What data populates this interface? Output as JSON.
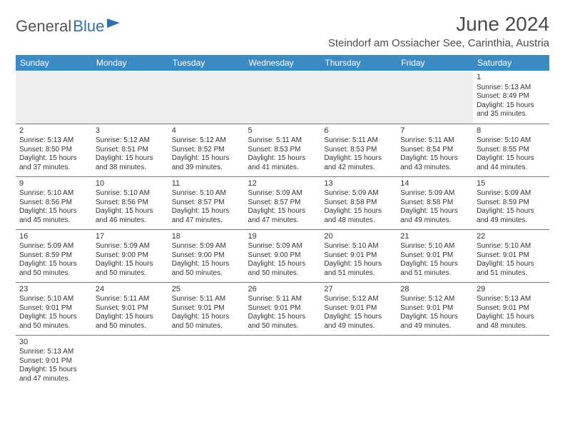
{
  "brand": {
    "left": "General",
    "right": "Blue"
  },
  "title": "June 2024",
  "location": "Steindorf am Ossiacher See, Carinthia, Austria",
  "colors": {
    "header_bg": "#3b8ac4",
    "header_text": "#ffffff",
    "rule": "#3b8ac4",
    "shade": "#efefef",
    "text": "#333333",
    "brand_blue": "#2f6fb0",
    "brand_gray": "#555555",
    "page_bg": "#ffffff"
  },
  "weekdays": [
    "Sunday",
    "Monday",
    "Tuesday",
    "Wednesday",
    "Thursday",
    "Friday",
    "Saturday"
  ],
  "weeks": [
    [
      null,
      null,
      null,
      null,
      null,
      null,
      {
        "day": "1",
        "sunrise": "Sunrise: 5:13 AM",
        "sunset": "Sunset: 8:49 PM",
        "daylight": "Daylight: 15 hours and 35 minutes."
      }
    ],
    [
      {
        "day": "2",
        "sunrise": "Sunrise: 5:13 AM",
        "sunset": "Sunset: 8:50 PM",
        "daylight": "Daylight: 15 hours and 37 minutes."
      },
      {
        "day": "3",
        "sunrise": "Sunrise: 5:12 AM",
        "sunset": "Sunset: 8:51 PM",
        "daylight": "Daylight: 15 hours and 38 minutes."
      },
      {
        "day": "4",
        "sunrise": "Sunrise: 5:12 AM",
        "sunset": "Sunset: 8:52 PM",
        "daylight": "Daylight: 15 hours and 39 minutes."
      },
      {
        "day": "5",
        "sunrise": "Sunrise: 5:11 AM",
        "sunset": "Sunset: 8:53 PM",
        "daylight": "Daylight: 15 hours and 41 minutes."
      },
      {
        "day": "6",
        "sunrise": "Sunrise: 5:11 AM",
        "sunset": "Sunset: 8:53 PM",
        "daylight": "Daylight: 15 hours and 42 minutes."
      },
      {
        "day": "7",
        "sunrise": "Sunrise: 5:11 AM",
        "sunset": "Sunset: 8:54 PM",
        "daylight": "Daylight: 15 hours and 43 minutes."
      },
      {
        "day": "8",
        "sunrise": "Sunrise: 5:10 AM",
        "sunset": "Sunset: 8:55 PM",
        "daylight": "Daylight: 15 hours and 44 minutes."
      }
    ],
    [
      {
        "day": "9",
        "sunrise": "Sunrise: 5:10 AM",
        "sunset": "Sunset: 8:56 PM",
        "daylight": "Daylight: 15 hours and 45 minutes."
      },
      {
        "day": "10",
        "sunrise": "Sunrise: 5:10 AM",
        "sunset": "Sunset: 8:56 PM",
        "daylight": "Daylight: 15 hours and 46 minutes."
      },
      {
        "day": "11",
        "sunrise": "Sunrise: 5:10 AM",
        "sunset": "Sunset: 8:57 PM",
        "daylight": "Daylight: 15 hours and 47 minutes."
      },
      {
        "day": "12",
        "sunrise": "Sunrise: 5:09 AM",
        "sunset": "Sunset: 8:57 PM",
        "daylight": "Daylight: 15 hours and 47 minutes."
      },
      {
        "day": "13",
        "sunrise": "Sunrise: 5:09 AM",
        "sunset": "Sunset: 8:58 PM",
        "daylight": "Daylight: 15 hours and 48 minutes."
      },
      {
        "day": "14",
        "sunrise": "Sunrise: 5:09 AM",
        "sunset": "Sunset: 8:58 PM",
        "daylight": "Daylight: 15 hours and 49 minutes."
      },
      {
        "day": "15",
        "sunrise": "Sunrise: 5:09 AM",
        "sunset": "Sunset: 8:59 PM",
        "daylight": "Daylight: 15 hours and 49 minutes."
      }
    ],
    [
      {
        "day": "16",
        "sunrise": "Sunrise: 5:09 AM",
        "sunset": "Sunset: 8:59 PM",
        "daylight": "Daylight: 15 hours and 50 minutes."
      },
      {
        "day": "17",
        "sunrise": "Sunrise: 5:09 AM",
        "sunset": "Sunset: 9:00 PM",
        "daylight": "Daylight: 15 hours and 50 minutes."
      },
      {
        "day": "18",
        "sunrise": "Sunrise: 5:09 AM",
        "sunset": "Sunset: 9:00 PM",
        "daylight": "Daylight: 15 hours and 50 minutes."
      },
      {
        "day": "19",
        "sunrise": "Sunrise: 5:09 AM",
        "sunset": "Sunset: 9:00 PM",
        "daylight": "Daylight: 15 hours and 50 minutes."
      },
      {
        "day": "20",
        "sunrise": "Sunrise: 5:10 AM",
        "sunset": "Sunset: 9:01 PM",
        "daylight": "Daylight: 15 hours and 51 minutes."
      },
      {
        "day": "21",
        "sunrise": "Sunrise: 5:10 AM",
        "sunset": "Sunset: 9:01 PM",
        "daylight": "Daylight: 15 hours and 51 minutes."
      },
      {
        "day": "22",
        "sunrise": "Sunrise: 5:10 AM",
        "sunset": "Sunset: 9:01 PM",
        "daylight": "Daylight: 15 hours and 51 minutes."
      }
    ],
    [
      {
        "day": "23",
        "sunrise": "Sunrise: 5:10 AM",
        "sunset": "Sunset: 9:01 PM",
        "daylight": "Daylight: 15 hours and 50 minutes."
      },
      {
        "day": "24",
        "sunrise": "Sunrise: 5:11 AM",
        "sunset": "Sunset: 9:01 PM",
        "daylight": "Daylight: 15 hours and 50 minutes."
      },
      {
        "day": "25",
        "sunrise": "Sunrise: 5:11 AM",
        "sunset": "Sunset: 9:01 PM",
        "daylight": "Daylight: 15 hours and 50 minutes."
      },
      {
        "day": "26",
        "sunrise": "Sunrise: 5:11 AM",
        "sunset": "Sunset: 9:01 PM",
        "daylight": "Daylight: 15 hours and 50 minutes."
      },
      {
        "day": "27",
        "sunrise": "Sunrise: 5:12 AM",
        "sunset": "Sunset: 9:01 PM",
        "daylight": "Daylight: 15 hours and 49 minutes."
      },
      {
        "day": "28",
        "sunrise": "Sunrise: 5:12 AM",
        "sunset": "Sunset: 9:01 PM",
        "daylight": "Daylight: 15 hours and 49 minutes."
      },
      {
        "day": "29",
        "sunrise": "Sunrise: 5:13 AM",
        "sunset": "Sunset: 9:01 PM",
        "daylight": "Daylight: 15 hours and 48 minutes."
      }
    ],
    [
      {
        "day": "30",
        "sunrise": "Sunrise: 5:13 AM",
        "sunset": "Sunset: 9:01 PM",
        "daylight": "Daylight: 15 hours and 47 minutes."
      },
      null,
      null,
      null,
      null,
      null,
      null
    ]
  ]
}
